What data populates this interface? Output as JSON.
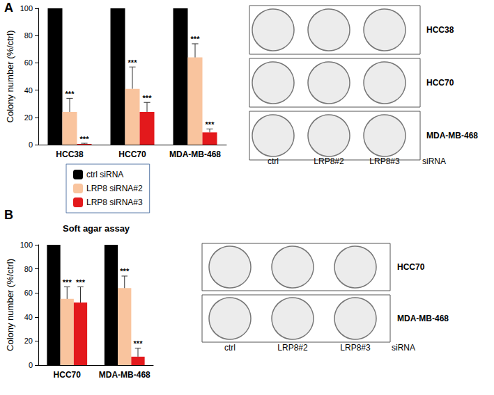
{
  "chart_data": [
    {
      "type": "bar",
      "panel": "A",
      "categories": [
        "HCC38",
        "HCC70",
        "MDA-MB-468"
      ],
      "y_label": "Colony number (%/ctrl)",
      "ylim": [
        0,
        100
      ],
      "yticks": [
        0,
        20,
        40,
        60,
        80,
        100
      ],
      "grid": false,
      "legend": "bottom",
      "series": [
        {
          "name": "ctrl siRNA",
          "color": "#000000",
          "values": [
            100,
            100,
            100
          ]
        },
        {
          "name": "LRP8 siRNA#2",
          "color": "#f9c49e",
          "values": [
            24,
            41,
            64
          ],
          "errors": [
            10,
            16,
            10
          ],
          "significance": [
            "***",
            "***",
            "***"
          ]
        },
        {
          "name": "LRP8 siRNA#3",
          "color": "#e3191c",
          "values": [
            0.5,
            24,
            9
          ],
          "errors": [
            0.5,
            7,
            2.5
          ],
          "significance": [
            "***",
            "***",
            "***"
          ]
        }
      ]
    },
    {
      "type": "bar",
      "panel": "B",
      "title": "Soft agar assay",
      "categories": [
        "HCC70",
        "MDA-MB-468"
      ],
      "y_label": "Colony number (%/ctrl)",
      "ylim": [
        0,
        100
      ],
      "yticks": [
        0,
        20,
        40,
        60,
        80,
        100
      ],
      "grid": false,
      "series": [
        {
          "name": "ctrl siRNA",
          "color": "#000000",
          "values": [
            100,
            100
          ]
        },
        {
          "name": "LRP8 siRNA#2",
          "color": "#f9c49e",
          "values": [
            55,
            64
          ],
          "errors": [
            10,
            10
          ],
          "significance": [
            "***",
            "***"
          ]
        },
        {
          "name": "LRP8 siRNA#3",
          "color": "#e3191c",
          "values": [
            52,
            7
          ],
          "errors": [
            13,
            7
          ],
          "significance": [
            "***",
            "***"
          ]
        }
      ]
    }
  ],
  "plates": [
    {
      "panel": "A",
      "rows": [
        "HCC38",
        "HCC70",
        "MDA-MB-468"
      ],
      "columns": [
        "ctrl",
        "LRP8#2",
        "LRP8#3"
      ],
      "column_title": "siRNA"
    },
    {
      "panel": "B",
      "rows": [
        "HCC70",
        "MDA-MB-468"
      ],
      "columns": [
        "ctrl",
        "LRP8#2",
        "LRP8#3"
      ],
      "column_title": "siRNA"
    }
  ]
}
